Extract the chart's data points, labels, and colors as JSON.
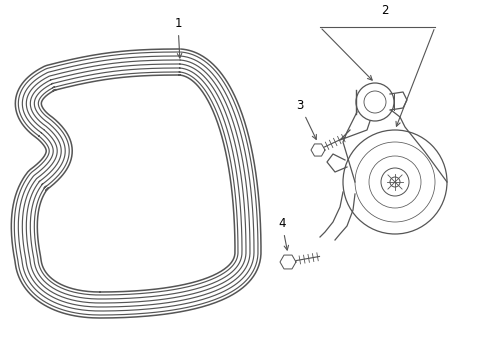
{
  "background_color": "#ffffff",
  "line_color": "#555555",
  "label_color": "#000000",
  "fig_width": 4.89,
  "fig_height": 3.6,
  "label_fontsize": 8.5,
  "dpi": 100
}
